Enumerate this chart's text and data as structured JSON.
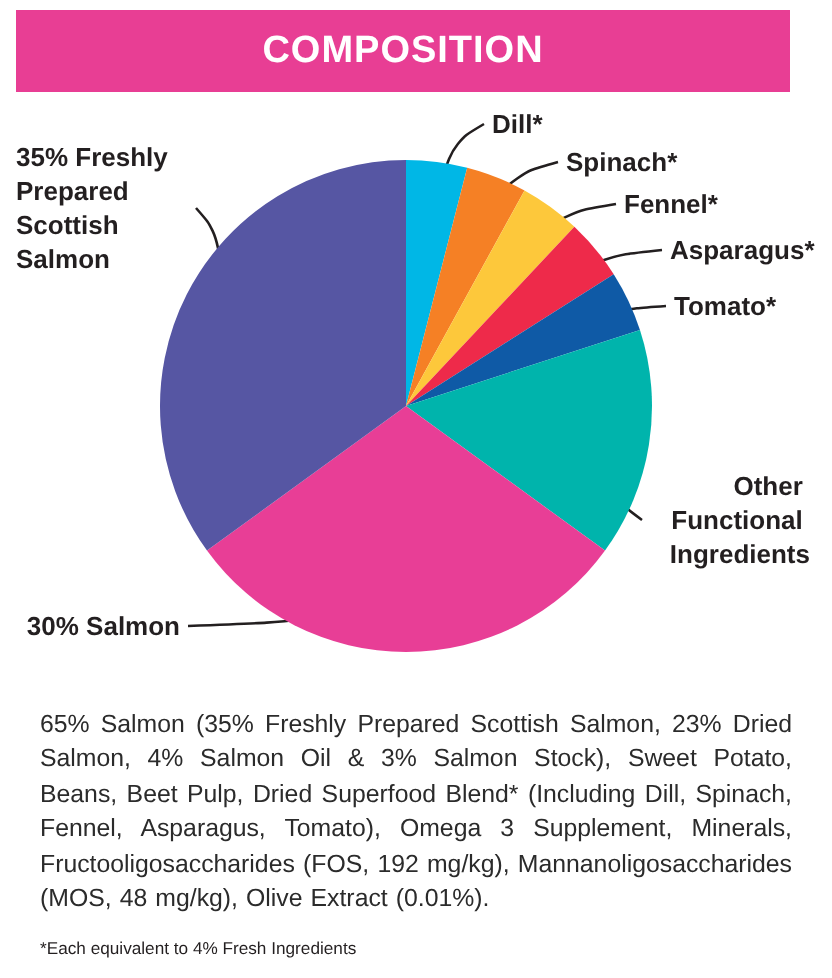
{
  "chart_data": {
    "type": "pie",
    "title": "COMPOSITION",
    "categories": [
      "Dill*",
      "Spinach*",
      "Fennel*",
      "Asparagus*",
      "Tomato*",
      "Other Functional Ingredients",
      "30% Salmon",
      "35% Freshly Prepared Scottish Salmon"
    ],
    "values": [
      4,
      4,
      4,
      4,
      4,
      15,
      30,
      35
    ],
    "colors": [
      "#00b7e6",
      "#f58025",
      "#fdc83b",
      "#ee2a4a",
      "#0f5aa6",
      "#00b4ac",
      "#e83e96",
      "#5656a3"
    ],
    "annotations": [
      "65% Salmon (35% Freshly Prepared Scottish Salmon, 23% Dried Salmon, 4% Salmon Oil & 3% Salmon Stock), Sweet Potato, Beans, Beet Pulp, Dried Superfood Blend* (Including Dill, Spinach, Fennel, Asparagus, Tomato), Omega 3 Supplement, Minerals, Fructooligosaccharides (FOS, 192 mg/kg), Mannanoligosaccharides (MOS, 48 mg/kg), Olive Extract (0.01%).",
      "*Each equivalent to 4% Fresh Ingredients"
    ]
  }
}
